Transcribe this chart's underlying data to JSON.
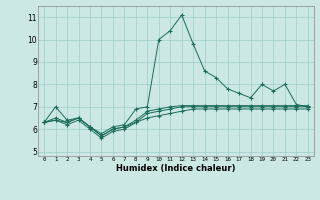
{
  "xlabel": "Humidex (Indice chaleur)",
  "background_color": "#cce8e4",
  "grid_color": "#9ecec8",
  "line_color": "#1a6b5a",
  "x": [
    0,
    1,
    2,
    3,
    4,
    5,
    6,
    7,
    8,
    9,
    10,
    11,
    12,
    13,
    14,
    15,
    16,
    17,
    18,
    19,
    20,
    21,
    22,
    23
  ],
  "line1": [
    6.3,
    7.0,
    6.4,
    6.5,
    6.1,
    5.8,
    6.1,
    6.2,
    6.9,
    7.0,
    10.0,
    10.4,
    11.1,
    9.8,
    8.6,
    8.3,
    7.8,
    7.6,
    7.4,
    8.0,
    7.7,
    8.0,
    7.1,
    7.0
  ],
  "line2": [
    6.3,
    6.4,
    6.3,
    6.5,
    6.1,
    5.7,
    6.0,
    6.1,
    6.3,
    6.7,
    6.8,
    6.9,
    7.0,
    7.0,
    7.0,
    7.0,
    7.0,
    7.0,
    7.0,
    7.0,
    7.0,
    7.0,
    7.0,
    7.0
  ],
  "line3": [
    6.3,
    6.4,
    6.2,
    6.4,
    6.0,
    5.6,
    5.9,
    6.0,
    6.3,
    6.5,
    6.6,
    6.7,
    6.8,
    6.9,
    6.9,
    6.9,
    6.9,
    6.9,
    6.9,
    6.9,
    6.9,
    6.9,
    6.9,
    6.9
  ],
  "line4": [
    6.3,
    6.5,
    6.3,
    6.5,
    6.1,
    5.7,
    6.0,
    6.1,
    6.4,
    6.8,
    6.9,
    7.0,
    7.05,
    7.05,
    7.05,
    7.05,
    7.05,
    7.05,
    7.05,
    7.05,
    7.05,
    7.05,
    7.05,
    7.05
  ],
  "ylim": [
    4.8,
    11.5
  ],
  "xlim": [
    -0.5,
    23.5
  ],
  "yticks": [
    5,
    6,
    7,
    8,
    9,
    10,
    11
  ],
  "xticks": [
    0,
    1,
    2,
    3,
    4,
    5,
    6,
    7,
    8,
    9,
    10,
    11,
    12,
    13,
    14,
    15,
    16,
    17,
    18,
    19,
    20,
    21,
    22,
    23
  ]
}
